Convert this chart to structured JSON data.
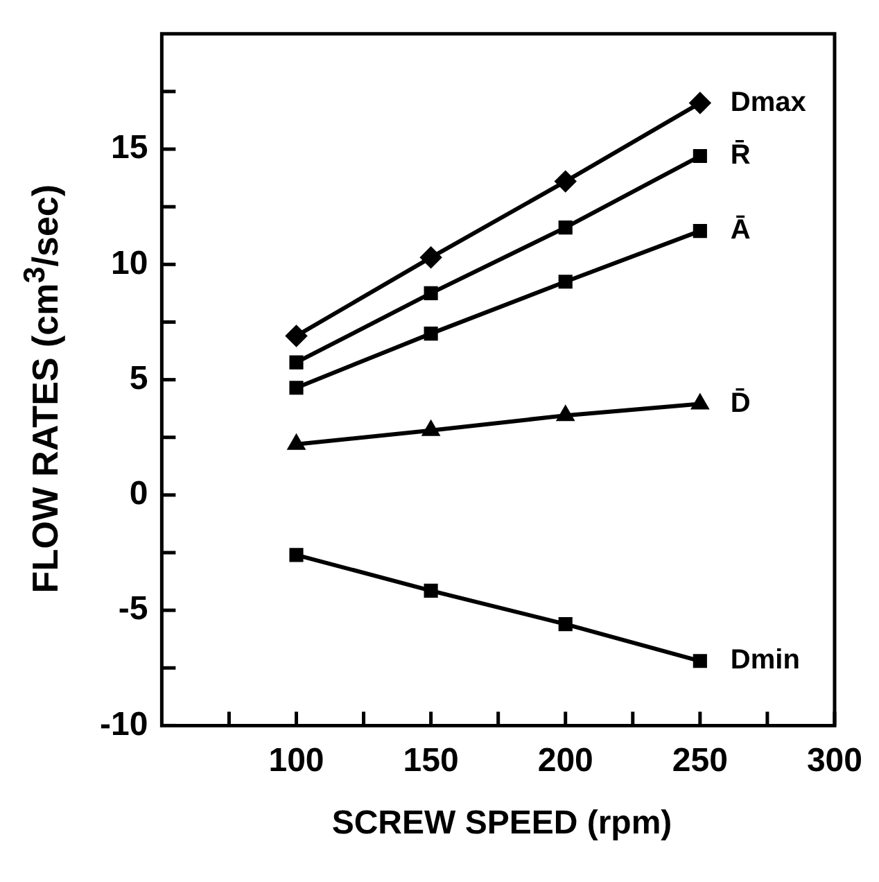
{
  "chart_data": {
    "type": "line",
    "xlabel": "SCREW SPEED (rpm)",
    "ylabel": "FLOW RATES (cm$^{3}$/sec)",
    "x": [
      100,
      150,
      200,
      250
    ],
    "series": [
      {
        "name": "Dmax",
        "color": "#000000",
        "marker": "diamond",
        "values": [
          6.9,
          10.3,
          13.6,
          17.0
        ]
      },
      {
        "name": "R̄",
        "color": "#000000",
        "marker": "square",
        "values": [
          5.75,
          8.75,
          11.6,
          14.7
        ]
      },
      {
        "name": "Ā",
        "color": "#000000",
        "marker": "square",
        "values": [
          4.65,
          7.0,
          9.25,
          11.45
        ]
      },
      {
        "name": "D̄",
        "color": "#000000",
        "marker": "triangle",
        "values": [
          2.2,
          2.8,
          3.45,
          3.95
        ]
      },
      {
        "name": "Dmin",
        "color": "#000000",
        "marker": "square",
        "values": [
          -2.6,
          -4.15,
          -5.6,
          -7.2
        ]
      }
    ],
    "xlim": [
      50,
      300
    ],
    "xticks": [
      {
        "value": 75,
        "label": null
      },
      100,
      {
        "value": 125,
        "label": null
      },
      150,
      {
        "value": 175,
        "label": null
      },
      200,
      {
        "value": 225,
        "label": null
      },
      250,
      {
        "value": 275,
        "label": null
      },
      300
    ],
    "ylim": [
      -10,
      20
    ],
    "yticks": [
      -10,
      {
        "value": -7.5,
        "label": null
      },
      -5,
      {
        "value": -2.5,
        "label": null
      },
      0,
      {
        "value": 2.5,
        "label": null
      },
      5,
      {
        "value": 7.5,
        "label": null
      },
      10,
      {
        "value": 12.5,
        "label": null
      },
      15,
      {
        "value": 17.5,
        "label": null
      }
    ],
    "grid": false,
    "legend": false,
    "line_style": "solid"
  }
}
